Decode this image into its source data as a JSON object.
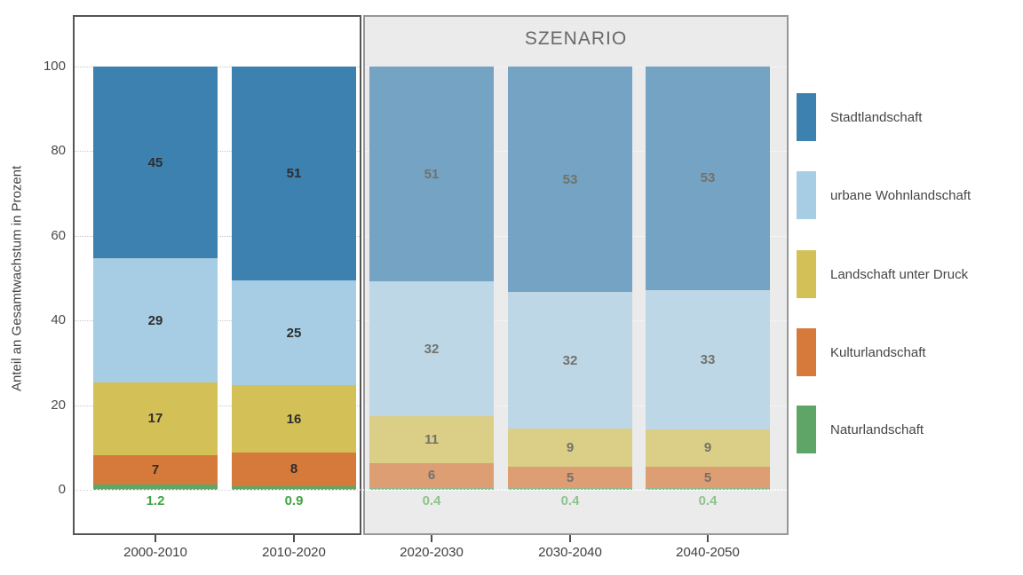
{
  "chart_data": {
    "type": "bar",
    "stacked": true,
    "orientation": "vertical",
    "title": "",
    "y_axis_label": "Anteil an Gesamtwachstum in Prozent",
    "x_axis_label": "",
    "ylim": [
      0,
      100
    ],
    "y_ticks": [
      0,
      20,
      40,
      60,
      80,
      100
    ],
    "grid": "dotted-horizontal",
    "legend_position": "right",
    "categories": [
      "2000-2010",
      "2010-2020",
      "2020-2030",
      "2030-2040",
      "2040-2050"
    ],
    "scenario": {
      "label": "SZENARIO",
      "categories": [
        "2020-2030",
        "2030-2040",
        "2040-2050"
      ],
      "panel_bg": "#ebebeb"
    },
    "series": [
      {
        "name": "Stadtlandschaft",
        "color": "#3c81b0",
        "values": [
          45,
          51,
          51,
          53,
          53
        ]
      },
      {
        "name": "urbane Wohnlandschaft",
        "color": "#a7cde4",
        "values": [
          29,
          25,
          32,
          32,
          33
        ]
      },
      {
        "name": "Landschaft unter Druck",
        "color": "#d3c157",
        "values": [
          17,
          16,
          11,
          9,
          9
        ]
      },
      {
        "name": "Kulturlandschaft",
        "color": "#d67a3c",
        "values": [
          7,
          8,
          6,
          5,
          5
        ]
      },
      {
        "name": "Naturlandschaft",
        "color": "#5fa567",
        "values": [
          1.2,
          0.9,
          0.4,
          0.4,
          0.4
        ],
        "labels_below_bar": true
      }
    ],
    "colors": {
      "value_label": "#2d2d2d",
      "value_label_muted": "#73726c",
      "natur_label": "#3fa43f",
      "natur_label_muted": "#8cc48c",
      "hist_panel_border": "#555555",
      "scen_panel_border": "#979797"
    }
  }
}
